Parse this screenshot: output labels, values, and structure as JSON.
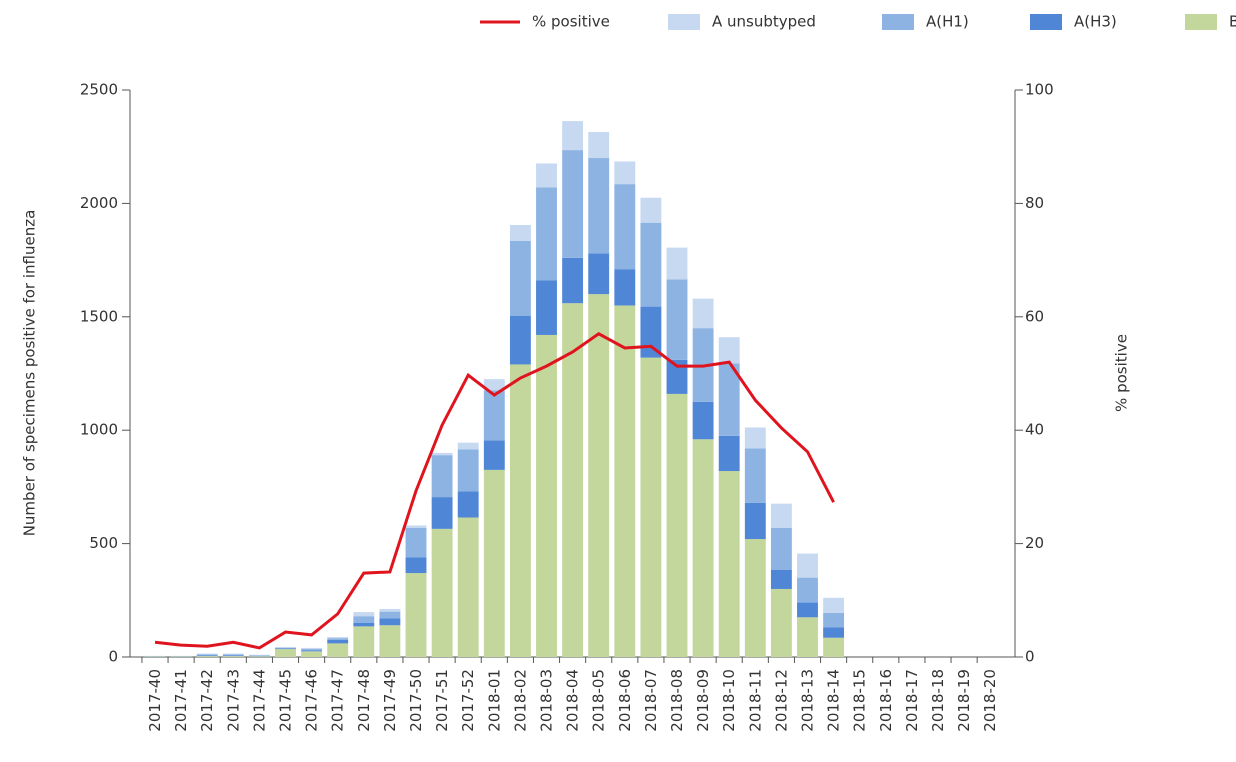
{
  "chart_data": {
    "type": "bar",
    "y_label": "Number of specimens positive for influenza",
    "y2_label": "% positive",
    "categories": [
      "2017-40",
      "2017-41",
      "2017-42",
      "2017-43",
      "2017-44",
      "2017-45",
      "2017-46",
      "2017-47",
      "2017-48",
      "2017-49",
      "2017-50",
      "2017-51",
      "2017-52",
      "2018-01",
      "2018-02",
      "2018-03",
      "2018-04",
      "2018-05",
      "2018-06",
      "2018-07",
      "2018-08",
      "2018-09",
      "2018-10",
      "2018-11",
      "2018-12",
      "2018-13",
      "2018-14",
      "2018-15",
      "2018-16",
      "2018-17",
      "2018-18",
      "2018-19",
      "2018-20"
    ],
    "series": [
      {
        "name": "% positive",
        "type": "line",
        "axis": "y2",
        "color": "#e0141e",
        "values": [
          2.6,
          2.1,
          1.9,
          2.6,
          1.6,
          4.4,
          3.9,
          7.6,
          14.8,
          15.0,
          29.3,
          40.9,
          49.7,
          46.2,
          49.2,
          51.3,
          53.8,
          57.0,
          54.5,
          54.8,
          51.3,
          51.3,
          52.0,
          45.3,
          40.4,
          36.2,
          27.3,
          null,
          null,
          null,
          null,
          null,
          null
        ]
      },
      {
        "name": "A unsubtyped",
        "color": "#c6d9f1",
        "values": [
          1,
          1,
          4,
          4,
          2,
          3,
          5,
          5,
          18,
          12,
          10,
          10,
          30,
          50,
          70,
          106,
          128,
          115,
          100,
          110,
          140,
          130,
          115,
          92,
          106,
          106,
          66,
          null,
          null,
          null,
          null,
          null,
          null
        ]
      },
      {
        "name": "A(H1)",
        "color": "#8db3e2",
        "values": [
          1,
          1,
          4,
          4,
          3,
          3,
          5,
          8,
          30,
          30,
          130,
          185,
          185,
          220,
          330,
          410,
          475,
          420,
          375,
          370,
          355,
          325,
          320,
          240,
          185,
          110,
          65,
          null,
          null,
          null,
          null,
          null,
          null
        ]
      },
      {
        "name": "A(H3)",
        "color": "#4f86d6",
        "values": [
          1,
          1,
          3,
          3,
          2,
          3,
          5,
          15,
          15,
          30,
          70,
          140,
          115,
          130,
          215,
          240,
          200,
          180,
          160,
          225,
          150,
          165,
          155,
          160,
          85,
          65,
          45,
          null,
          null,
          null,
          null,
          null,
          null
        ]
      },
      {
        "name": "B",
        "color": "#c3d69b",
        "values": [
          2,
          2,
          4,
          4,
          3,
          35,
          25,
          60,
          135,
          140,
          370,
          565,
          615,
          825,
          1290,
          1420,
          1560,
          1600,
          1550,
          1320,
          1160,
          960,
          820,
          520,
          300,
          175,
          85,
          null,
          null,
          null,
          null,
          null,
          null
        ]
      }
    ],
    "ylim": [
      0,
      2500
    ],
    "yticks": [
      0,
      500,
      1000,
      1500,
      2000,
      2500
    ],
    "y2lim": [
      0,
      100
    ],
    "y2ticks": [
      0,
      20,
      40,
      60,
      80,
      100
    ]
  }
}
